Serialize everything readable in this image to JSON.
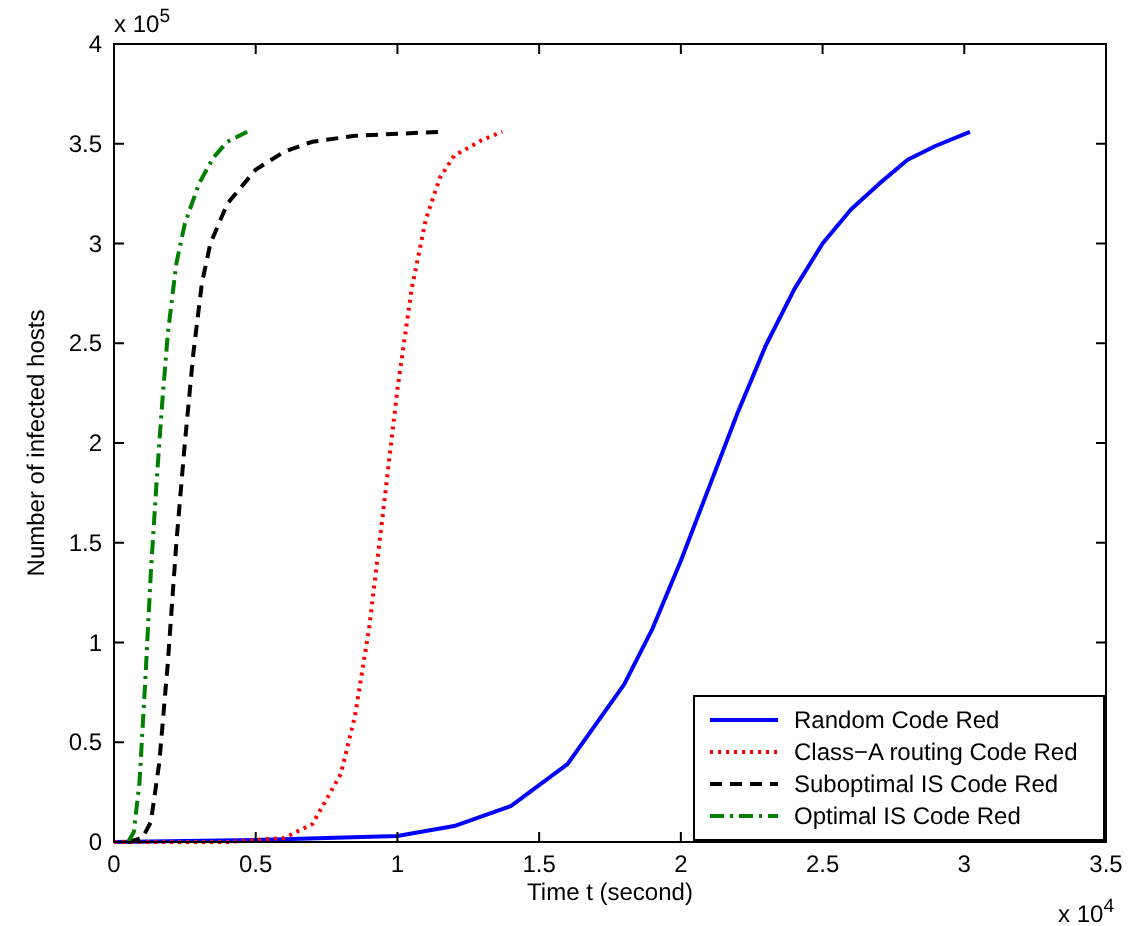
{
  "chart_data": {
    "type": "line",
    "xlabel": "Time t (second)",
    "ylabel": "Number of infected hosts",
    "annotations": [
      "x 10$^{5}$",
      "x 10$^{4}$"
    ],
    "xlim": [
      0,
      3.5
    ],
    "xticks": [
      0,
      0.5,
      1,
      1.5,
      2,
      2.5,
      3,
      3.5
    ],
    "ylim": [
      0,
      4
    ],
    "yticks": [
      0,
      0.5,
      1,
      1.5,
      2,
      2.5,
      3,
      3.5,
      4
    ],
    "grid": false,
    "legend": "bottom right",
    "series": [
      {
        "name": "Random Code Red",
        "color": "#0000ff",
        "line_style": "solid",
        "x": [
          0,
          0.5,
          1.0,
          1.2,
          1.4,
          1.6,
          1.8,
          1.9,
          2.0,
          2.1,
          2.2,
          2.3,
          2.4,
          2.5,
          2.6,
          2.7,
          2.8,
          2.9,
          3.02
        ],
        "values": [
          0,
          0.01,
          0.03,
          0.08,
          0.18,
          0.39,
          0.79,
          1.07,
          1.41,
          1.78,
          2.15,
          2.49,
          2.77,
          3.0,
          3.17,
          3.3,
          3.42,
          3.49,
          3.56
        ]
      },
      {
        "name": "Class−A routing Code Red",
        "color": "#ff0000",
        "line_style": "dotted",
        "x": [
          0,
          0.4,
          0.5,
          0.6,
          0.7,
          0.8,
          0.85,
          0.9,
          0.95,
          1.0,
          1.05,
          1.1,
          1.15,
          1.2,
          1.3,
          1.37
        ],
        "values": [
          0,
          0,
          0.01,
          0.02,
          0.09,
          0.34,
          0.63,
          1.07,
          1.66,
          2.27,
          2.77,
          3.12,
          3.33,
          3.44,
          3.52,
          3.56
        ]
      },
      {
        "name": "Suboptimal IS Code Red",
        "color": "#000000",
        "line_style": "dashed",
        "x": [
          0.05,
          0.1,
          0.13,
          0.16,
          0.19,
          0.22,
          0.25,
          0.28,
          0.31,
          0.34,
          0.4,
          0.5,
          0.6,
          0.7,
          0.85,
          1.0,
          1.16
        ],
        "values": [
          0,
          0.02,
          0.1,
          0.4,
          0.9,
          1.5,
          2.0,
          2.45,
          2.8,
          3.0,
          3.2,
          3.37,
          3.46,
          3.51,
          3.54,
          3.55,
          3.56
        ]
      },
      {
        "name": "Optimal IS Code Red",
        "color": "#007f00",
        "line_style": "dashdot",
        "x": [
          0.05,
          0.07,
          0.09,
          0.11,
          0.13,
          0.15,
          0.17,
          0.19,
          0.22,
          0.25,
          0.3,
          0.35,
          0.4,
          0.47
        ],
        "values": [
          0,
          0.05,
          0.3,
          0.8,
          1.35,
          1.8,
          2.2,
          2.55,
          2.9,
          3.1,
          3.3,
          3.43,
          3.51,
          3.56
        ]
      }
    ]
  }
}
